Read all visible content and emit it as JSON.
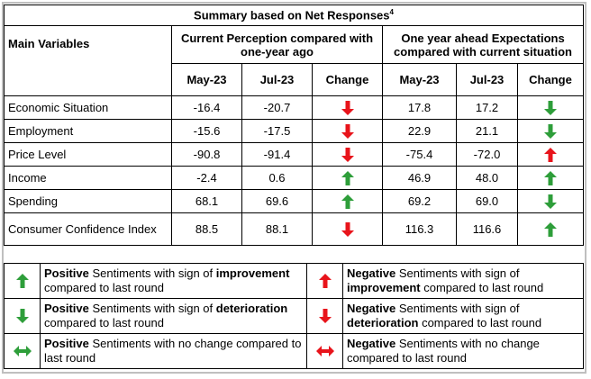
{
  "title": "Summary based on Net Responses",
  "title_sup": "4",
  "header": {
    "main_variables": "Main Variables",
    "current_group": "Current Perception compared with one-year ago",
    "ahead_group": "One year ahead Expectations compared with current situation",
    "col_may": "May-23",
    "col_jul": "Jul-23",
    "col_change": "Change"
  },
  "rows": [
    {
      "name": "Economic Situation",
      "cur_may": "-16.4",
      "cur_jul": "-20.7",
      "cur_icon": "arrow-down-red",
      "ahd_may": "17.8",
      "ahd_jul": "17.2",
      "ahd_icon": "arrow-down-green"
    },
    {
      "name": "Employment",
      "cur_may": "-15.6",
      "cur_jul": "-17.5",
      "cur_icon": "arrow-down-red",
      "ahd_may": "22.9",
      "ahd_jul": "21.1",
      "ahd_icon": "arrow-down-green"
    },
    {
      "name": "Price Level",
      "cur_may": "-90.8",
      "cur_jul": "-91.4",
      "cur_icon": "arrow-down-red",
      "ahd_may": "-75.4",
      "ahd_jul": "-72.0",
      "ahd_icon": "arrow-up-red"
    },
    {
      "name": "Income",
      "cur_may": "-2.4",
      "cur_jul": "0.6",
      "cur_icon": "arrow-up-green",
      "ahd_may": "46.9",
      "ahd_jul": "48.0",
      "ahd_icon": "arrow-up-green"
    },
    {
      "name": "Spending",
      "cur_may": "68.1",
      "cur_jul": "69.6",
      "cur_icon": "arrow-up-green",
      "ahd_may": "69.2",
      "ahd_jul": "69.0",
      "ahd_icon": "arrow-down-green"
    },
    {
      "name": "Consumer Confidence Index",
      "cur_may": "88.5",
      "cur_jul": "88.1",
      "cur_icon": "arrow-down-red",
      "ahd_may": "116.3",
      "ahd_jul": "116.6",
      "ahd_icon": "arrow-up-green"
    }
  ],
  "legend": [
    {
      "icon": "arrow-up-green",
      "bold1": "Positive",
      "t1": " Sentiments with sign of ",
      "bold2": "improvement",
      "t2": " compared to last round"
    },
    {
      "icon": "arrow-up-red",
      "bold1": "Negative",
      "t1": " Sentiments with sign of ",
      "bold2": "improvement",
      "t2": " compared to last round"
    },
    {
      "icon": "arrow-down-green",
      "bold1": "Positive",
      "t1": " Sentiments with sign of ",
      "bold2": "deterioration",
      "t2": " compared to last round"
    },
    {
      "icon": "arrow-down-red",
      "bold1": "Negative",
      "t1": " Sentiments with sign of ",
      "bold2": "deterioration",
      "t2": " compared to last round"
    },
    {
      "icon": "arrow-both-green",
      "bold1": "Positive",
      "t1": " Sentiments with no change compared to last round",
      "bold2": "",
      "t2": ""
    },
    {
      "icon": "arrow-both-red",
      "bold1": "Negative",
      "t1": " Sentiments with no change compared to last round",
      "bold2": "",
      "t2": ""
    }
  ],
  "colors": {
    "green": "#2e9e3a",
    "red": "#e8141b"
  }
}
